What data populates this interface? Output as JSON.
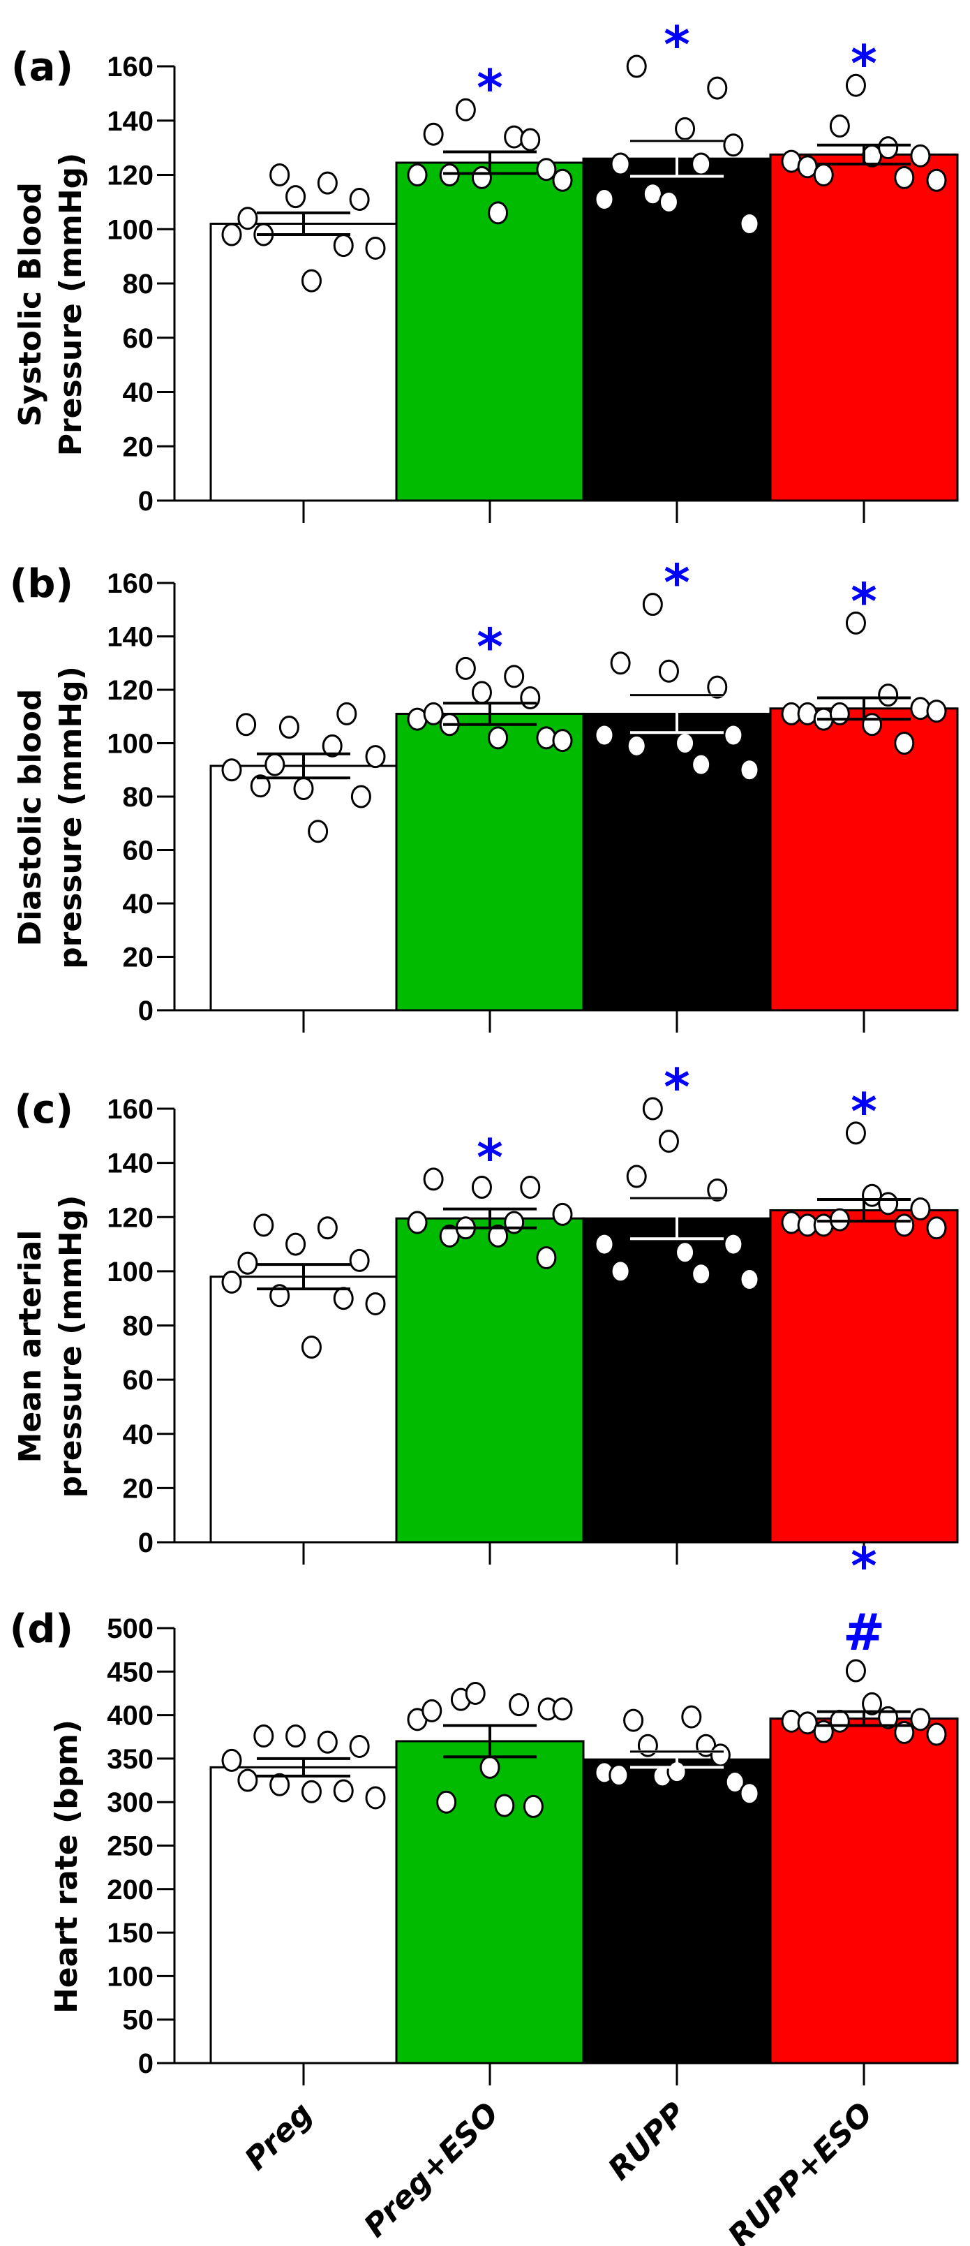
{
  "chart_data": {
    "type": "bar",
    "categories": [
      "Preg",
      "Preg+ESO",
      "RUPP",
      "RUPP+ESO"
    ],
    "colors": {
      "Preg": "#ffffff",
      "Preg+ESO": "#00bb00",
      "RUPP": "#000000",
      "RUPP+ESO": "#ff0000",
      "annotation": "#0000ff"
    },
    "error_bars": "mean ± SEM",
    "panels": [
      {
        "label": "(a)",
        "ylabel": [
          "Systolic Blood",
          "Pressure (mmHg)"
        ],
        "ylim": [
          0,
          160
        ],
        "ytick_step": 20,
        "ticks": [
          "0",
          "20",
          "40",
          "60",
          "80",
          "100",
          "120",
          "140",
          "160"
        ],
        "groups": [
          {
            "mean": 102,
            "sem": 4,
            "points": [
              98,
              104,
              98,
              120,
              112,
              81,
              117,
              94,
              111,
              93
            ],
            "annotations": []
          },
          {
            "mean": 124.5,
            "sem": 4,
            "points": [
              120,
              135,
              120,
              144,
              119,
              106,
              134,
              133,
              122,
              118
            ],
            "annotations": [
              "*"
            ]
          },
          {
            "mean": 126,
            "sem": 6.5,
            "points": [
              111,
              124,
              160,
              113,
              110,
              137,
              124,
              152,
              131,
              102
            ],
            "annotations": [
              "*"
            ]
          },
          {
            "mean": 127.5,
            "sem": 3.5,
            "points": [
              125,
              123,
              120,
              138,
              153,
              127,
              130,
              119,
              127,
              118
            ],
            "annotations": [
              "*"
            ]
          }
        ]
      },
      {
        "label": "(b)",
        "ylabel": [
          "Diastolic blood",
          "pressure (mmHg)"
        ],
        "ylim": [
          0,
          160
        ],
        "ytick_step": 20,
        "ticks": [
          "0",
          "20",
          "40",
          "60",
          "80",
          "100",
          "120",
          "140",
          "160"
        ],
        "groups": [
          {
            "mean": 91.5,
            "sem": 4.5,
            "points": [
              90,
              107,
              84,
              92,
              106,
              83,
              67,
              99,
              111,
              80,
              95
            ],
            "annotations": []
          },
          {
            "mean": 111,
            "sem": 4,
            "points": [
              109,
              111,
              107,
              128,
              119,
              102,
              125,
              117,
              102,
              101
            ],
            "annotations": [
              "*"
            ]
          },
          {
            "mean": 111,
            "sem": 7,
            "points": [
              103,
              130,
              99,
              152,
              127,
              100,
              92,
              121,
              103,
              90
            ],
            "annotations": [
              "*"
            ]
          },
          {
            "mean": 113,
            "sem": 4,
            "points": [
              111,
              111,
              109,
              111,
              145,
              107,
              118,
              100,
              113,
              112
            ],
            "annotations": [
              "*"
            ]
          }
        ]
      },
      {
        "label": "(c)",
        "ylabel": [
          "Mean arterial",
          "pressure (mmHg)"
        ],
        "ylim": [
          0,
          160
        ],
        "ytick_step": 20,
        "ticks": [
          "0",
          "20",
          "40",
          "60",
          "80",
          "100",
          "120",
          "140",
          "160"
        ],
        "groups": [
          {
            "mean": 98,
            "sem": 4.5,
            "points": [
              96,
              103,
              117,
              91,
              110,
              72,
              116,
              90,
              104,
              88
            ],
            "annotations": []
          },
          {
            "mean": 119.5,
            "sem": 3.5,
            "points": [
              118,
              134,
              113,
              116,
              131,
              113,
              118,
              131,
              105,
              121
            ],
            "annotations": [
              "*"
            ]
          },
          {
            "mean": 119.5,
            "sem": 7.5,
            "points": [
              110,
              100,
              135,
              160,
              148,
              107,
              99,
              130,
              110,
              97
            ],
            "annotations": [
              "*"
            ]
          },
          {
            "mean": 122.5,
            "sem": 4,
            "points": [
              118,
              117,
              117,
              119,
              151,
              128,
              125,
              117,
              123,
              116
            ],
            "annotations": [
              "*"
            ]
          }
        ]
      },
      {
        "label": "(d)",
        "ylabel": [
          "Heart rate (bpm)"
        ],
        "ylim": [
          0,
          500
        ],
        "ytick_step": 50,
        "ticks": [
          "0",
          "50",
          "100",
          "150",
          "200",
          "250",
          "300",
          "350",
          "400",
          "450",
          "500"
        ],
        "groups": [
          {
            "mean": 340,
            "sem": 10,
            "points": [
              348,
              325,
              376,
              320,
              376,
              312,
              369,
              313,
              364,
              305
            ],
            "annotations": []
          },
          {
            "mean": 370,
            "sem": 18,
            "points": [
              395,
              405,
              300,
              418,
              425,
              340,
              296,
              412,
              295,
              407,
              407
            ],
            "annotations": []
          },
          {
            "mean": 349,
            "sem": 9,
            "points": [
              334,
              331,
              394,
              365,
              330,
              335,
              398,
              365,
              354,
              323,
              310
            ],
            "annotations": []
          },
          {
            "mean": 396,
            "sem": 8,
            "points": [
              393,
              391,
              381,
              393,
              451,
              413,
              397,
              380,
              395,
              378
            ],
            "annotations": [
              "*",
              "#"
            ]
          }
        ]
      }
    ]
  }
}
